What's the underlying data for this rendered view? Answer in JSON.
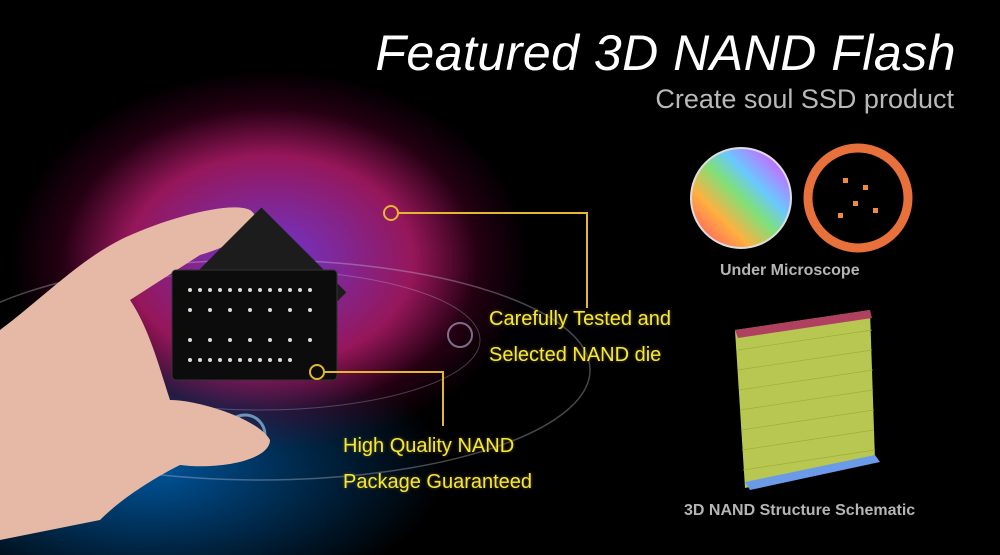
{
  "header": {
    "title": "Featured 3D NAND Flash",
    "subtitle": "Create soul SSD product"
  },
  "callouts": [
    {
      "line1": "Carefully Tested and",
      "line2": "Selected NAND die"
    },
    {
      "line1": "High Quality NAND",
      "line2": "Package Guaranteed"
    }
  ],
  "captions": {
    "microscope": "Under Microscope",
    "schematic": "3D NAND Structure Schematic"
  },
  "colors": {
    "accent": "#f5e83a",
    "line": "#e4b732",
    "background": "#000000"
  }
}
